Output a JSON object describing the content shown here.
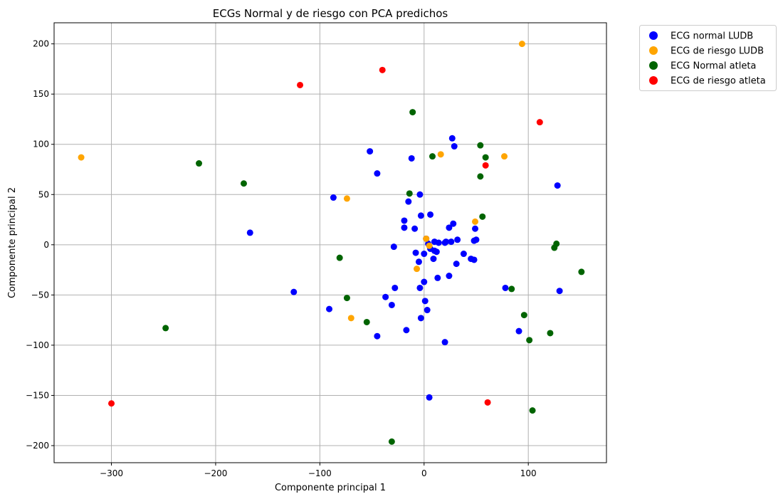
{
  "chart_data": {
    "type": "scatter",
    "title": "ECGs Normal y de riesgo con PCA predichos",
    "xlabel": "Componente principal 1",
    "ylabel": "Componente principal 2",
    "xlim": [
      -355,
      175
    ],
    "ylim": [
      -217,
      221
    ],
    "xticks": [
      -300,
      -200,
      -100,
      0,
      100
    ],
    "xtick_labels": [
      "−300",
      "−200",
      "−100",
      "0",
      "100"
    ],
    "yticks": [
      -200,
      -150,
      -100,
      -50,
      0,
      50,
      100,
      150,
      200
    ],
    "ytick_labels": [
      "−200",
      "−150",
      "−100",
      "−50",
      "0",
      "50",
      "100",
      "150",
      "200"
    ],
    "grid": true,
    "legend_position": "outside-top-right",
    "series": [
      {
        "name": "ECG normal LUDB",
        "color": "#0000ff",
        "points": [
          [
            27,
            106
          ],
          [
            29,
            98
          ],
          [
            -52,
            93
          ],
          [
            -12,
            86
          ],
          [
            -45,
            71
          ],
          [
            -4,
            50
          ],
          [
            -87,
            47
          ],
          [
            -15,
            43
          ],
          [
            6,
            30
          ],
          [
            -3,
            29
          ],
          [
            -19,
            24
          ],
          [
            28,
            21
          ],
          [
            -19,
            17
          ],
          [
            -9,
            16
          ],
          [
            24,
            17
          ],
          [
            49,
            16
          ],
          [
            -167,
            12
          ],
          [
            2,
            6
          ],
          [
            32,
            5
          ],
          [
            50,
            5
          ],
          [
            48,
            4
          ],
          [
            10,
            3
          ],
          [
            14,
            2
          ],
          [
            21,
            3
          ],
          [
            26,
            3
          ],
          [
            20,
            2
          ],
          [
            4,
            1
          ],
          [
            6,
            -4
          ],
          [
            -29,
            -2
          ],
          [
            10,
            -6
          ],
          [
            12,
            -7
          ],
          [
            -8,
            -8
          ],
          [
            0,
            -9
          ],
          [
            38,
            -9
          ],
          [
            45,
            -14
          ],
          [
            48,
            -15
          ],
          [
            9,
            -14
          ],
          [
            -5,
            -17
          ],
          [
            31,
            -19
          ],
          [
            24,
            -31
          ],
          [
            13,
            -33
          ],
          [
            0,
            -37
          ],
          [
            -28,
            -43
          ],
          [
            -4,
            -43
          ],
          [
            78,
            -43
          ],
          [
            130,
            -46
          ],
          [
            -125,
            -47
          ],
          [
            -37,
            -52
          ],
          [
            1,
            -56
          ],
          [
            -31,
            -60
          ],
          [
            -91,
            -64
          ],
          [
            3,
            -65
          ],
          [
            -3,
            -73
          ],
          [
            91,
            -86
          ],
          [
            -17,
            -85
          ],
          [
            -45,
            -91
          ],
          [
            20,
            -97
          ],
          [
            5,
            -152
          ],
          [
            128,
            59
          ]
        ]
      },
      {
        "name": "ECG de riesgo LUDB",
        "color": "#ffa500",
        "points": [
          [
            94,
            200
          ],
          [
            -329,
            87
          ],
          [
            16,
            90
          ],
          [
            77,
            88
          ],
          [
            -74,
            46
          ],
          [
            49,
            23
          ],
          [
            2,
            6
          ],
          [
            -7,
            -24
          ],
          [
            -70,
            -73
          ],
          [
            5,
            -1
          ]
        ]
      },
      {
        "name": "ECG Normal atleta",
        "color": "#006400",
        "points": [
          [
            -11,
            132
          ],
          [
            54,
            99
          ],
          [
            -216,
            81
          ],
          [
            8,
            88
          ],
          [
            59,
            87
          ],
          [
            54,
            68
          ],
          [
            -173,
            61
          ],
          [
            -14,
            51
          ],
          [
            56,
            28
          ],
          [
            127,
            1
          ],
          [
            125,
            -3
          ],
          [
            -81,
            -13
          ],
          [
            151,
            -27
          ],
          [
            84,
            -44
          ],
          [
            -74,
            -53
          ],
          [
            96,
            -70
          ],
          [
            -55,
            -77
          ],
          [
            -248,
            -83
          ],
          [
            121,
            -88
          ],
          [
            101,
            -95
          ],
          [
            104,
            -165
          ],
          [
            -31,
            -196
          ]
        ]
      },
      {
        "name": "ECG de riesgo atleta",
        "color": "#ff0000",
        "points": [
          [
            -40,
            174
          ],
          [
            -119,
            159
          ],
          [
            111,
            122
          ],
          [
            59,
            79
          ],
          [
            -300,
            -158
          ],
          [
            61,
            -157
          ]
        ]
      }
    ]
  }
}
